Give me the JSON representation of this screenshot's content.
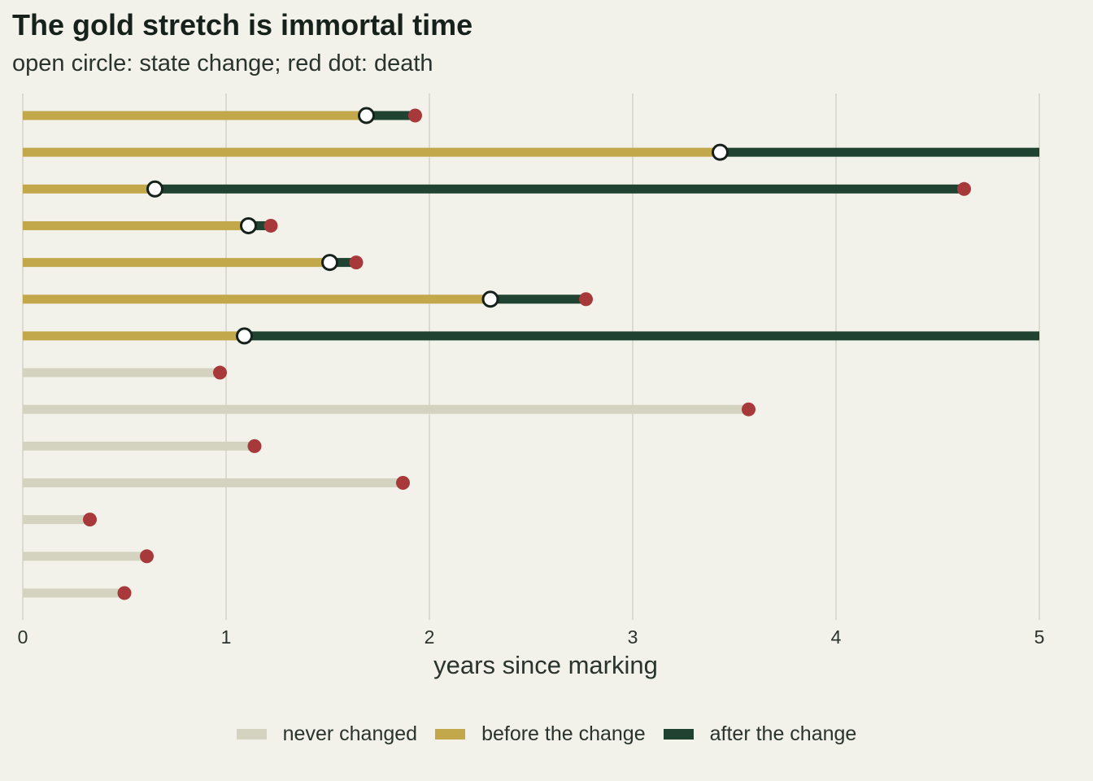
{
  "chart_data": {
    "type": "bar",
    "title": "The gold stretch is immortal time",
    "subtitle": "open circle: state change; red dot: death",
    "xlabel": "years since marking",
    "ylabel": "",
    "xlim": [
      0,
      5
    ],
    "x_ticks": [
      "0",
      "1",
      "2",
      "3",
      "4",
      "5"
    ],
    "grid": "vertical",
    "legend_placement": "bottom",
    "colors": {
      "never_changed": "#d3d3c0",
      "before_change": "#c2a84b",
      "after_change": "#1f4330",
      "death": "#a8393b",
      "change_marker_fill": "#ffffff",
      "change_marker_stroke": "#17211b",
      "gridline": "#d6d6c9",
      "background": "#f2f1ea"
    },
    "legend": [
      {
        "key": "never_changed",
        "label": "never changed"
      },
      {
        "key": "before_change",
        "label": "before the change"
      },
      {
        "key": "after_change",
        "label": "after the change"
      }
    ],
    "subjects": [
      {
        "change": 1.69,
        "end": 1.93,
        "death": true
      },
      {
        "change": 3.43,
        "end": 5.0,
        "death": false
      },
      {
        "change": 0.65,
        "end": 4.63,
        "death": true
      },
      {
        "change": 1.11,
        "end": 1.22,
        "death": true
      },
      {
        "change": 1.51,
        "end": 1.64,
        "death": true
      },
      {
        "change": 2.3,
        "end": 2.77,
        "death": true
      },
      {
        "change": 1.09,
        "end": 5.0,
        "death": false
      },
      {
        "change": null,
        "end": 0.97,
        "death": true
      },
      {
        "change": null,
        "end": 3.57,
        "death": true
      },
      {
        "change": null,
        "end": 1.14,
        "death": true
      },
      {
        "change": null,
        "end": 1.87,
        "death": true
      },
      {
        "change": null,
        "end": 0.33,
        "death": true
      },
      {
        "change": null,
        "end": 0.61,
        "death": true
      },
      {
        "change": null,
        "end": 0.5,
        "death": true
      }
    ]
  }
}
